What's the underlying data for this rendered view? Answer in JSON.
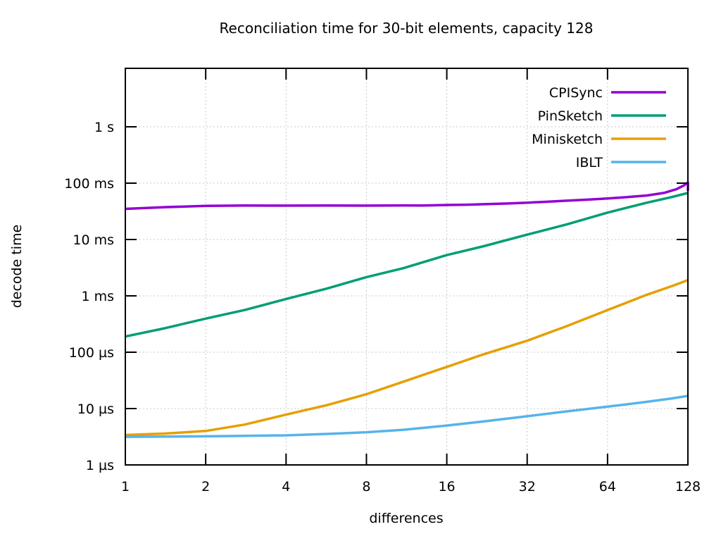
{
  "chart_data": {
    "type": "line",
    "title": "Reconciliation time for 30-bit elements, capacity 128",
    "xlabel": "differences",
    "ylabel": "decode time",
    "x_scale": "log2",
    "y_scale": "log10",
    "x_range": [
      1,
      128
    ],
    "y_range_us": [
      1,
      11000000
    ],
    "grid": true,
    "legend_position": "top-right-inside",
    "x_ticks": [
      {
        "label": "1",
        "value": 1
      },
      {
        "label": "2",
        "value": 2
      },
      {
        "label": "4",
        "value": 4
      },
      {
        "label": "8",
        "value": 8
      },
      {
        "label": "16",
        "value": 16
      },
      {
        "label": "32",
        "value": 32
      },
      {
        "label": "64",
        "value": 64
      },
      {
        "label": "128",
        "value": 128
      }
    ],
    "y_ticks": [
      {
        "label": "1 s",
        "us": 1000000
      },
      {
        "label": "100 ms",
        "us": 100000
      },
      {
        "label": "10 ms",
        "us": 10000
      },
      {
        "label": "1 ms",
        "us": 1000
      },
      {
        "label": "100 µs",
        "us": 100
      },
      {
        "label": "10 µs",
        "us": 10
      },
      {
        "label": "1 µs",
        "us": 1
      }
    ],
    "colors": {
      "grid": "#c8c8c8",
      "border": "#000000",
      "cpisync": "#9400d3",
      "pinsketch": "#009e73",
      "minisketch": "#e69f00",
      "iblt": "#56b4e9"
    },
    "series": [
      {
        "name": "CPISync",
        "color": "#9400d3",
        "points_x_us": [
          [
            1,
            35000
          ],
          [
            1.4,
            37500
          ],
          [
            2,
            39500
          ],
          [
            2.8,
            40200
          ],
          [
            4,
            39900
          ],
          [
            5.7,
            40100
          ],
          [
            8,
            39900
          ],
          [
            11,
            40300
          ],
          [
            13,
            40100
          ],
          [
            16,
            41000
          ],
          [
            19,
            41500
          ],
          [
            22,
            42300
          ],
          [
            27,
            43500
          ],
          [
            32,
            45000
          ],
          [
            38,
            46800
          ],
          [
            45,
            48800
          ],
          [
            54,
            51000
          ],
          [
            64,
            53500
          ],
          [
            76,
            56500
          ],
          [
            90,
            60500
          ],
          [
            104,
            67000
          ],
          [
            116,
            78000
          ],
          [
            124,
            92000
          ],
          [
            128,
            103000
          ],
          [
            128,
            73000
          ]
        ]
      },
      {
        "name": "PinSketch",
        "color": "#009e73",
        "points_x_us": [
          [
            1,
            190
          ],
          [
            1.4,
            265
          ],
          [
            2,
            395
          ],
          [
            2.8,
            560
          ],
          [
            4,
            880
          ],
          [
            5.7,
            1350
          ],
          [
            8,
            2150
          ],
          [
            11,
            3100
          ],
          [
            16,
            5300
          ],
          [
            22,
            7600
          ],
          [
            32,
            12200
          ],
          [
            45,
            18500
          ],
          [
            64,
            30000
          ],
          [
            90,
            45000
          ],
          [
            112,
            57000
          ],
          [
            128,
            67000
          ]
        ]
      },
      {
        "name": "Minisketch",
        "color": "#e69f00",
        "points_x_us": [
          [
            1,
            3.4
          ],
          [
            1.4,
            3.6
          ],
          [
            2,
            4.0
          ],
          [
            2.8,
            5.2
          ],
          [
            4,
            7.8
          ],
          [
            5.7,
            11.5
          ],
          [
            8,
            18
          ],
          [
            11,
            30
          ],
          [
            16,
            55
          ],
          [
            22,
            92
          ],
          [
            32,
            160
          ],
          [
            45,
            290
          ],
          [
            64,
            560
          ],
          [
            90,
            1050
          ],
          [
            112,
            1500
          ],
          [
            128,
            1900
          ]
        ]
      },
      {
        "name": "IBLT",
        "color": "#56b4e9",
        "points_x_us": [
          [
            1,
            3.15
          ],
          [
            1.4,
            3.18
          ],
          [
            2,
            3.22
          ],
          [
            2.8,
            3.28
          ],
          [
            4,
            3.35
          ],
          [
            5.7,
            3.55
          ],
          [
            8,
            3.8
          ],
          [
            11,
            4.2
          ],
          [
            16,
            5.0
          ],
          [
            22,
            5.9
          ],
          [
            32,
            7.3
          ],
          [
            45,
            8.9
          ],
          [
            64,
            10.8
          ],
          [
            90,
            13.2
          ],
          [
            112,
            15.2
          ],
          [
            128,
            16.8
          ]
        ]
      }
    ]
  }
}
